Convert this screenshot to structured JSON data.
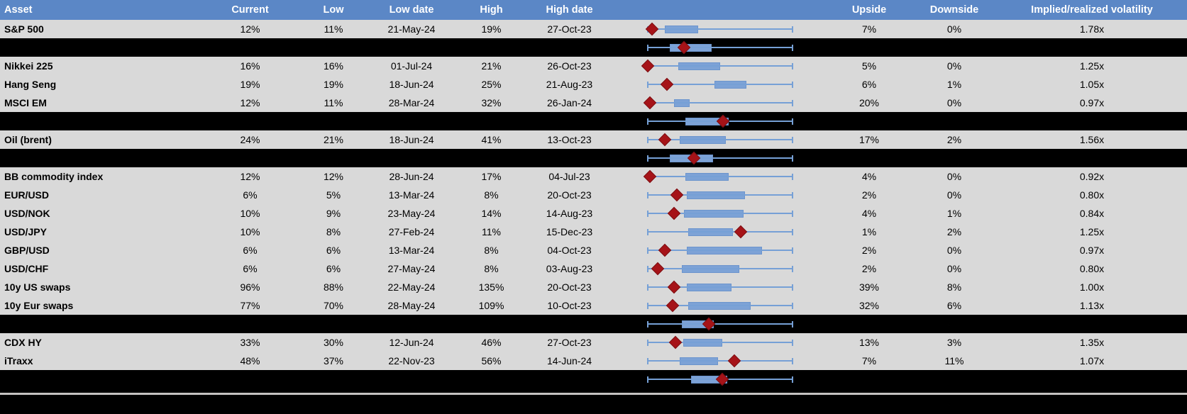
{
  "header": {
    "columns": [
      "Asset",
      "Current",
      "Low",
      "Low date",
      "High",
      "High date",
      "Upside",
      "Downside",
      "Implied/realized volatility"
    ]
  },
  "colors": {
    "header_bg": "#5B87C6",
    "header_text": "#FFFFFF",
    "row_bg": "#D9D9D9",
    "separator_bg": "#000000",
    "whisker": "#76A0D6",
    "box_fill": "#7DA2D6",
    "box_border": "#6B94CD",
    "diamond_fill": "#A61318",
    "diamond_border": "#7E1013",
    "footer_line": "#C4C2C0"
  },
  "rows": [
    {
      "type": "data",
      "asset": "S&P 500",
      "current": "12%",
      "low": "11%",
      "low_date": "21-May-24",
      "high": "19%",
      "high_date": "27-Oct-23",
      "upside": "7%",
      "downside": "0%",
      "implied_realized": "1.78x",
      "plot": {
        "whisker_lo": 0,
        "whisker_hi": 1,
        "box_lo": 0.12,
        "box_hi": 0.35,
        "marker": 0.03
      }
    },
    {
      "type": "separator",
      "asset": "",
      "current": "",
      "low": "",
      "low_date": "",
      "high": "",
      "high_date": "",
      "upside": "",
      "downside": "",
      "implied_realized": "",
      "plot": {
        "whisker_lo": 0,
        "whisker_hi": 1,
        "box_lo": 0.15,
        "box_hi": 0.44,
        "marker": 0.25
      }
    },
    {
      "type": "data",
      "asset": "Nikkei 225",
      "current": "16%",
      "low": "16%",
      "low_date": "01-Jul-24",
      "high": "21%",
      "high_date": "26-Oct-23",
      "upside": "5%",
      "downside": "0%",
      "implied_realized": "1.25x",
      "plot": {
        "whisker_lo": 0,
        "whisker_hi": 1,
        "box_lo": 0.21,
        "box_hi": 0.5,
        "marker": 0.0
      }
    },
    {
      "type": "data",
      "asset": "Hang Seng",
      "current": "19%",
      "low": "19%",
      "low_date": "18-Jun-24",
      "high": "25%",
      "high_date": "21-Aug-23",
      "upside": "6%",
      "downside": "1%",
      "implied_realized": "1.05x",
      "plot": {
        "whisker_lo": 0,
        "whisker_hi": 1,
        "box_lo": 0.46,
        "box_hi": 0.68,
        "marker": 0.13
      }
    },
    {
      "type": "data",
      "asset": "MSCI EM",
      "current": "12%",
      "low": "11%",
      "low_date": "28-Mar-24",
      "high": "32%",
      "high_date": "26-Jan-24",
      "upside": "20%",
      "downside": "0%",
      "implied_realized": "0.97x",
      "plot": {
        "whisker_lo": 0,
        "whisker_hi": 1,
        "box_lo": 0.18,
        "box_hi": 0.29,
        "marker": 0.015
      }
    },
    {
      "type": "separator",
      "asset": "",
      "current": "",
      "low": "",
      "low_date": "",
      "high": "",
      "high_date": "",
      "upside": "",
      "downside": "",
      "implied_realized": "",
      "plot": {
        "whisker_lo": 0,
        "whisker_hi": 1,
        "box_lo": 0.26,
        "box_hi": 0.56,
        "marker": 0.52
      }
    },
    {
      "type": "data",
      "asset": "Oil (brent)",
      "current": "24%",
      "low": "21%",
      "low_date": "18-Jun-24",
      "high": "41%",
      "high_date": "13-Oct-23",
      "upside": "17%",
      "downside": "2%",
      "implied_realized": "1.56x",
      "plot": {
        "whisker_lo": 0,
        "whisker_hi": 1,
        "box_lo": 0.22,
        "box_hi": 0.54,
        "marker": 0.12
      }
    },
    {
      "type": "separator",
      "asset": "",
      "current": "",
      "low": "",
      "low_date": "",
      "high": "",
      "high_date": "",
      "upside": "",
      "downside": "",
      "implied_realized": "",
      "plot": {
        "whisker_lo": 0,
        "whisker_hi": 1,
        "box_lo": 0.15,
        "box_hi": 0.45,
        "marker": 0.32
      }
    },
    {
      "type": "data",
      "asset": "BB commodity index",
      "current": "12%",
      "low": "12%",
      "low_date": "28-Jun-24",
      "high": "17%",
      "high_date": "04-Jul-23",
      "upside": "4%",
      "downside": "0%",
      "implied_realized": "0.92x",
      "plot": {
        "whisker_lo": 0,
        "whisker_hi": 1,
        "box_lo": 0.26,
        "box_hi": 0.56,
        "marker": 0.015
      }
    },
    {
      "type": "data",
      "asset": "EUR/USD",
      "current": "6%",
      "low": "5%",
      "low_date": "13-Mar-24",
      "high": "8%",
      "high_date": "20-Oct-23",
      "upside": "2%",
      "downside": "0%",
      "implied_realized": "0.80x",
      "plot": {
        "whisker_lo": 0,
        "whisker_hi": 1,
        "box_lo": 0.27,
        "box_hi": 0.67,
        "marker": 0.2
      }
    },
    {
      "type": "data",
      "asset": "USD/NOK",
      "current": "10%",
      "low": "9%",
      "low_date": "23-May-24",
      "high": "14%",
      "high_date": "14-Aug-23",
      "upside": "4%",
      "downside": "1%",
      "implied_realized": "0.84x",
      "plot": {
        "whisker_lo": 0,
        "whisker_hi": 1,
        "box_lo": 0.25,
        "box_hi": 0.66,
        "marker": 0.18
      }
    },
    {
      "type": "data",
      "asset": "USD/JPY",
      "current": "10%",
      "low": "8%",
      "low_date": "27-Feb-24",
      "high": "11%",
      "high_date": "15-Dec-23",
      "upside": "1%",
      "downside": "2%",
      "implied_realized": "1.25x",
      "plot": {
        "whisker_lo": 0,
        "whisker_hi": 1,
        "box_lo": 0.28,
        "box_hi": 0.59,
        "marker": 0.64
      }
    },
    {
      "type": "data",
      "asset": "GBP/USD",
      "current": "6%",
      "low": "6%",
      "low_date": "13-Mar-24",
      "high": "8%",
      "high_date": "04-Oct-23",
      "upside": "2%",
      "downside": "0%",
      "implied_realized": "0.97x",
      "plot": {
        "whisker_lo": 0,
        "whisker_hi": 1,
        "box_lo": 0.27,
        "box_hi": 0.79,
        "marker": 0.12
      }
    },
    {
      "type": "data",
      "asset": "USD/CHF",
      "current": "6%",
      "low": "6%",
      "low_date": "27-May-24",
      "high": "8%",
      "high_date": "03-Aug-23",
      "upside": "2%",
      "downside": "0%",
      "implied_realized": "0.80x",
      "plot": {
        "whisker_lo": 0,
        "whisker_hi": 1,
        "box_lo": 0.235,
        "box_hi": 0.63,
        "marker": 0.07
      }
    },
    {
      "type": "data",
      "asset": "10y US swaps",
      "current": "96%",
      "low": "88%",
      "low_date": "22-May-24",
      "high": "135%",
      "high_date": "20-Oct-23",
      "upside": "39%",
      "downside": "8%",
      "implied_realized": "1.00x",
      "plot": {
        "whisker_lo": 0,
        "whisker_hi": 1,
        "box_lo": 0.27,
        "box_hi": 0.58,
        "marker": 0.18
      }
    },
    {
      "type": "data",
      "asset": "10y Eur swaps",
      "current": "77%",
      "low": "70%",
      "low_date": "28-May-24",
      "high": "109%",
      "high_date": "10-Oct-23",
      "upside": "32%",
      "downside": "6%",
      "implied_realized": "1.13x",
      "plot": {
        "whisker_lo": 0,
        "whisker_hi": 1,
        "box_lo": 0.28,
        "box_hi": 0.71,
        "marker": 0.17
      }
    },
    {
      "type": "separator",
      "asset": "",
      "current": "",
      "low": "",
      "low_date": "",
      "high": "",
      "high_date": "",
      "upside": "",
      "downside": "",
      "implied_realized": "",
      "plot": {
        "whisker_lo": 0,
        "whisker_hi": 1,
        "box_lo": 0.235,
        "box_hi": 0.455,
        "marker": 0.42
      }
    },
    {
      "type": "data",
      "asset": "CDX HY",
      "current": "33%",
      "low": "30%",
      "low_date": "12-Jun-24",
      "high": "46%",
      "high_date": "27-Oct-23",
      "upside": "13%",
      "downside": "3%",
      "implied_realized": "1.35x",
      "plot": {
        "whisker_lo": 0,
        "whisker_hi": 1,
        "box_lo": 0.245,
        "box_hi": 0.515,
        "marker": 0.19
      }
    },
    {
      "type": "data",
      "asset": "iTraxx",
      "current": "48%",
      "low": "37%",
      "low_date": "22-Nov-23",
      "high": "56%",
      "high_date": "14-Jun-24",
      "upside": "7%",
      "downside": "11%",
      "implied_realized": "1.07x",
      "plot": {
        "whisker_lo": 0,
        "whisker_hi": 1,
        "box_lo": 0.22,
        "box_hi": 0.485,
        "marker": 0.6
      }
    },
    {
      "type": "separator",
      "asset": "",
      "current": "",
      "low": "",
      "low_date": "",
      "high": "",
      "high_date": "",
      "upside": "",
      "downside": "",
      "implied_realized": "",
      "plot": {
        "whisker_lo": 0,
        "whisker_hi": 1,
        "box_lo": 0.3,
        "box_hi": 0.55,
        "marker": 0.515
      }
    }
  ],
  "chart_data": {
    "type": "boxplot",
    "orientation": "horizontal",
    "axis": "none (positions normalized 0-1 across each row's full whisker range; whiskers span the full range on every row)",
    "legend": "blue box = range band, red diamond = current level marker, black rows = unlabeled aggregate rows",
    "series": [
      {
        "name": "S&P 500",
        "whisker": [
          0,
          1
        ],
        "box": [
          0.12,
          0.35
        ],
        "marker": 0.03
      },
      {
        "name": "aggregate-1",
        "whisker": [
          0,
          1
        ],
        "box": [
          0.15,
          0.44
        ],
        "marker": 0.25
      },
      {
        "name": "Nikkei 225",
        "whisker": [
          0,
          1
        ],
        "box": [
          0.21,
          0.5
        ],
        "marker": 0.0
      },
      {
        "name": "Hang Seng",
        "whisker": [
          0,
          1
        ],
        "box": [
          0.46,
          0.68
        ],
        "marker": 0.13
      },
      {
        "name": "MSCI EM",
        "whisker": [
          0,
          1
        ],
        "box": [
          0.18,
          0.29
        ],
        "marker": 0.015
      },
      {
        "name": "aggregate-2",
        "whisker": [
          0,
          1
        ],
        "box": [
          0.26,
          0.56
        ],
        "marker": 0.52
      },
      {
        "name": "Oil (brent)",
        "whisker": [
          0,
          1
        ],
        "box": [
          0.22,
          0.54
        ],
        "marker": 0.12
      },
      {
        "name": "aggregate-3",
        "whisker": [
          0,
          1
        ],
        "box": [
          0.15,
          0.45
        ],
        "marker": 0.32
      },
      {
        "name": "BB commodity index",
        "whisker": [
          0,
          1
        ],
        "box": [
          0.26,
          0.56
        ],
        "marker": 0.015
      },
      {
        "name": "EUR/USD",
        "whisker": [
          0,
          1
        ],
        "box": [
          0.27,
          0.67
        ],
        "marker": 0.2
      },
      {
        "name": "USD/NOK",
        "whisker": [
          0,
          1
        ],
        "box": [
          0.25,
          0.66
        ],
        "marker": 0.18
      },
      {
        "name": "USD/JPY",
        "whisker": [
          0,
          1
        ],
        "box": [
          0.28,
          0.59
        ],
        "marker": 0.64
      },
      {
        "name": "GBP/USD",
        "whisker": [
          0,
          1
        ],
        "box": [
          0.27,
          0.79
        ],
        "marker": 0.12
      },
      {
        "name": "USD/CHF",
        "whisker": [
          0,
          1
        ],
        "box": [
          0.235,
          0.63
        ],
        "marker": 0.07
      },
      {
        "name": "10y US swaps",
        "whisker": [
          0,
          1
        ],
        "box": [
          0.27,
          0.58
        ],
        "marker": 0.18
      },
      {
        "name": "10y Eur swaps",
        "whisker": [
          0,
          1
        ],
        "box": [
          0.28,
          0.71
        ],
        "marker": 0.17
      },
      {
        "name": "aggregate-4",
        "whisker": [
          0,
          1
        ],
        "box": [
          0.235,
          0.455
        ],
        "marker": 0.42
      },
      {
        "name": "CDX HY",
        "whisker": [
          0,
          1
        ],
        "box": [
          0.245,
          0.515
        ],
        "marker": 0.19
      },
      {
        "name": "iTraxx",
        "whisker": [
          0,
          1
        ],
        "box": [
          0.22,
          0.485
        ],
        "marker": 0.6
      },
      {
        "name": "aggregate-5",
        "whisker": [
          0,
          1
        ],
        "box": [
          0.3,
          0.55
        ],
        "marker": 0.515
      }
    ]
  }
}
